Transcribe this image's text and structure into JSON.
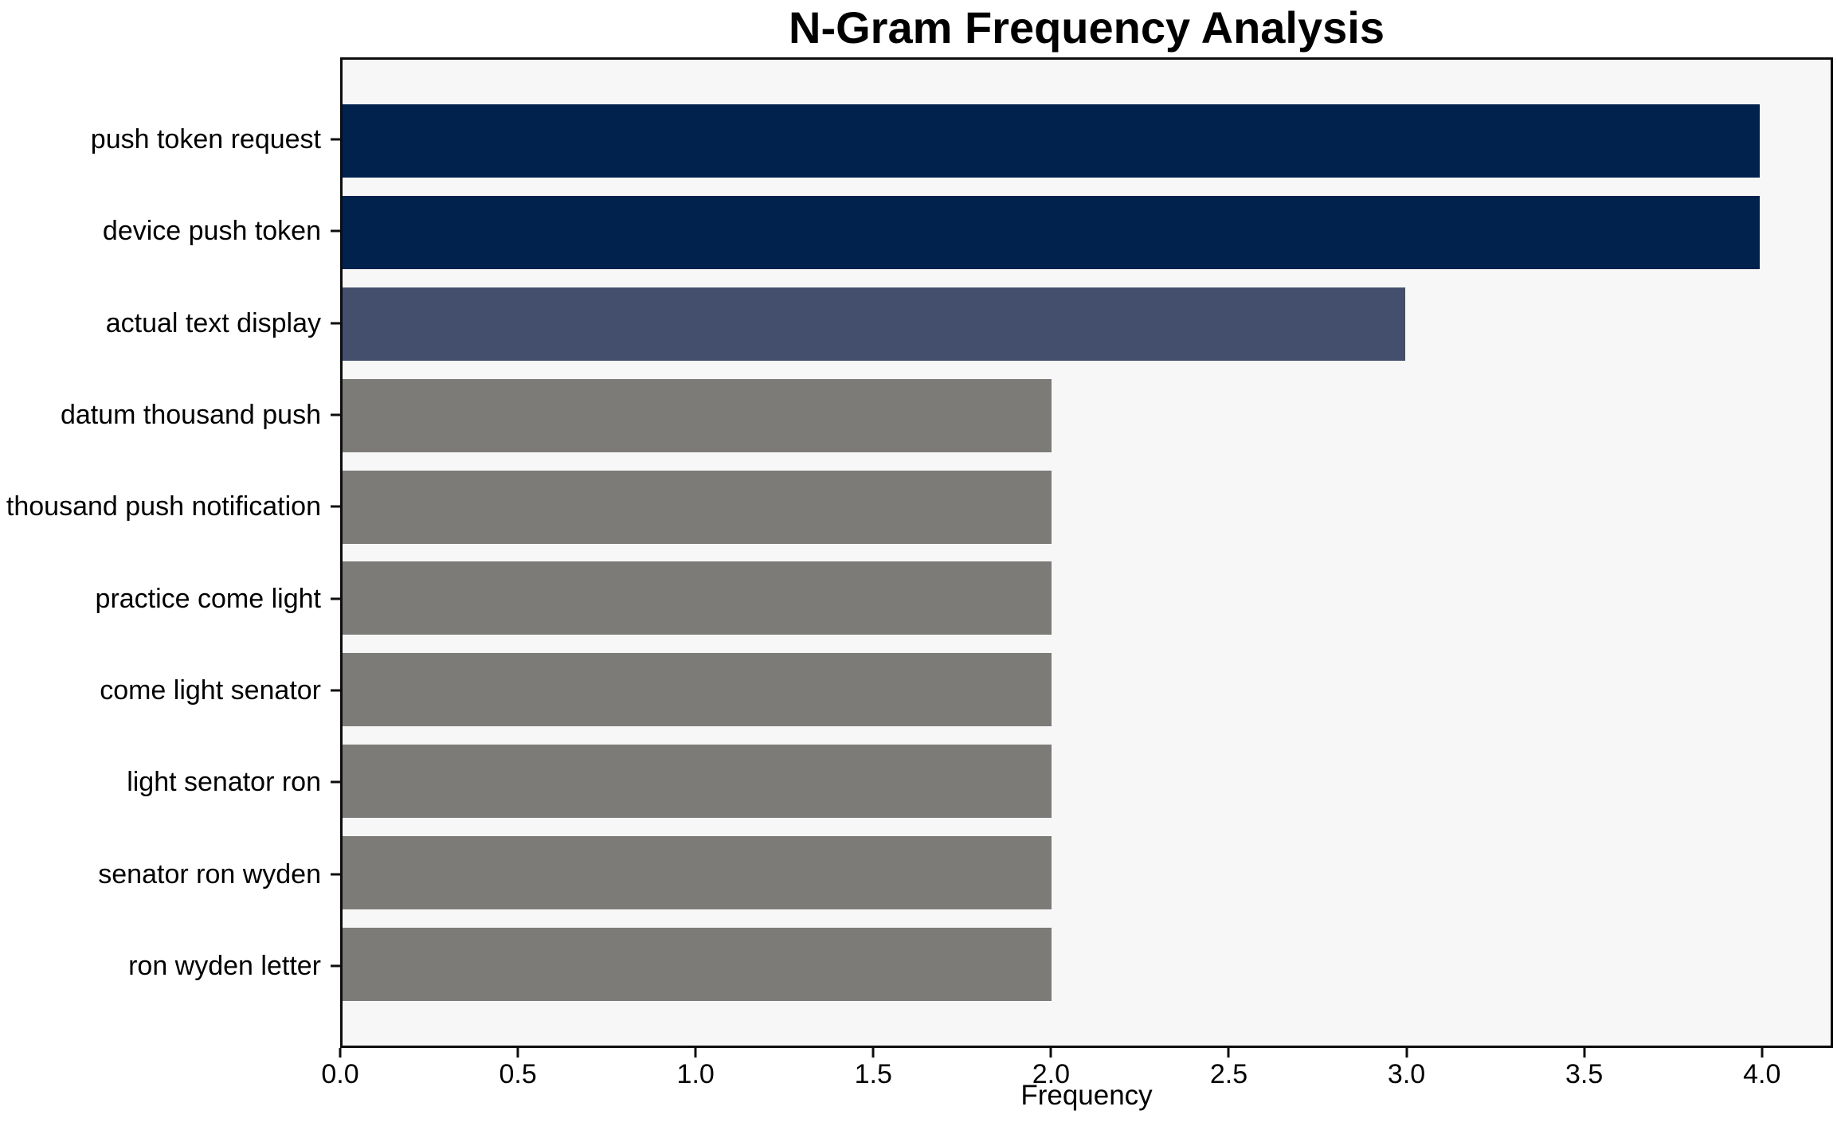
{
  "chart_data": {
    "type": "bar",
    "orientation": "horizontal",
    "title": "N-Gram Frequency Analysis",
    "xlabel": "Frequency",
    "ylabel": "",
    "categories": [
      "push token request",
      "device push token",
      "actual text display",
      "datum thousand push",
      "thousand push notification",
      "practice come light",
      "come light senator",
      "light senator ron",
      "senator ron wyden",
      "ron wyden letter"
    ],
    "values": [
      4,
      4,
      3,
      2,
      2,
      2,
      2,
      2,
      2,
      2
    ],
    "bar_colors": [
      "#02224e",
      "#02224e",
      "#434f6c",
      "#7c7b78",
      "#7c7b78",
      "#7c7b78",
      "#7c7b78",
      "#7c7b78",
      "#7c7b78",
      "#7c7b78"
    ],
    "xlim": [
      0,
      4.2
    ],
    "xticks": [
      0.0,
      0.5,
      1.0,
      1.5,
      2.0,
      2.5,
      3.0,
      3.5,
      4.0
    ],
    "xtick_labels": [
      "0.0",
      "0.5",
      "1.0",
      "1.5",
      "2.0",
      "2.5",
      "3.0",
      "3.5",
      "4.0"
    ],
    "grid": false,
    "legend": "none",
    "colors": {
      "figure_background": "#ffffff",
      "plot_background": "#f7f7f7",
      "spine": "#0d0d0d",
      "text": "#000000",
      "bar_high": "#02224e",
      "bar_mid": "#434f6c",
      "bar_low": "#7c7b78"
    }
  }
}
